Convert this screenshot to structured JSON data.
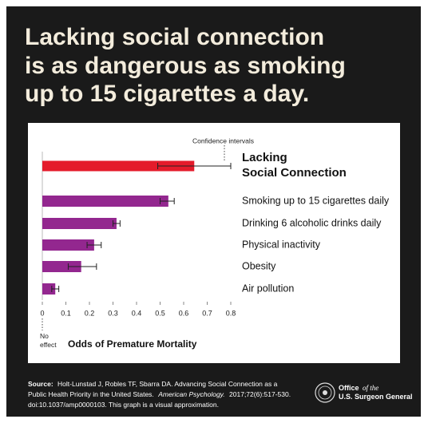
{
  "chart_data": {
    "type": "bar",
    "orientation": "horizontal",
    "title": [
      "Lacking social connection",
      "is as dangerous as smoking",
      "up to 15 cigarettes a day."
    ],
    "categories": [
      "Lacking Social Connection",
      "Smoking up to 15 cigarettes daily",
      "Drinking 6 alcoholic drinks daily",
      "Physical inactivity",
      "Obesity",
      "Air pollution"
    ],
    "values": [
      0.645,
      0.535,
      0.315,
      0.22,
      0.165,
      0.055
    ],
    "ci_low": [
      0.49,
      0.5,
      0.3,
      0.19,
      0.11,
      0.04
    ],
    "ci_high": [
      0.8,
      0.56,
      0.33,
      0.25,
      0.23,
      0.07
    ],
    "colors": [
      "#e41b2b",
      "#93278f",
      "#93278f",
      "#93278f",
      "#93278f",
      "#93278f"
    ],
    "xlim": [
      0,
      0.8
    ],
    "xticks": [
      0,
      0.1,
      0.2,
      0.3,
      0.4,
      0.5,
      0.6,
      0.7,
      0.8
    ],
    "x_label": "Odds of Premature Mortality",
    "annotations": {
      "confidence": "Confidence intervals",
      "no_effect": "No effect"
    }
  },
  "footer": {
    "source_label": "Source:",
    "line1": "Holt-Lunstad J, Robles TF, Sbarra DA. Advancing Social Connection as a",
    "line2a": "Public Health Priority in the United States.",
    "journal": "American Psychology.",
    "line2b": "2017;72(6):517-530.",
    "line3": "doi:10.1037/amp0000103. This graph is a visual approximation.",
    "logo_office": "Office",
    "logo_of": "of the",
    "logo_name": "U.S. Surgeon General"
  }
}
